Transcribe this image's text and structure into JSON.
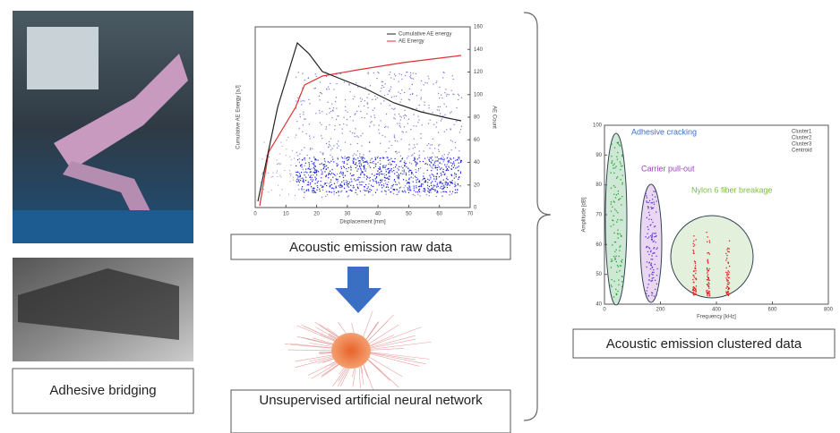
{
  "left": {
    "caption": "Adhesive bridging"
  },
  "raw": {
    "caption": "Acoustic emission raw data",
    "legend": [
      "Cumulative AE energy",
      "AE Energy"
    ],
    "x_label": "Displacement [mm]",
    "y_label": "Cumulative AE Energy [aJ]",
    "y2_label": "AE Count",
    "xlim": [
      0,
      70
    ],
    "xticks": [
      0,
      10,
      20,
      30,
      40,
      50,
      60,
      70
    ],
    "y2lim": [
      0,
      160
    ],
    "y2ticks": [
      0,
      20,
      40,
      60,
      80,
      100,
      120,
      140,
      160
    ]
  },
  "network": {
    "caption": "Unsupervised artificial neural network"
  },
  "clustered": {
    "caption": "Acoustic emission clustered data",
    "clusters": [
      "Adhesive cracking",
      "Carrier pull-out",
      "Nylon 6 fiber breakage"
    ],
    "legend": [
      "Cluster1",
      "Cluster2",
      "Cluster3",
      "Centroid"
    ],
    "x_label": "Frequency [kHz]",
    "y_label": "Amplitude [dB]",
    "xlim": [
      0,
      800
    ],
    "xticks": [
      0,
      200,
      400,
      600,
      800
    ],
    "ylim": [
      40,
      100
    ],
    "yticks": [
      40,
      50,
      60,
      70,
      80,
      90,
      100
    ]
  }
}
